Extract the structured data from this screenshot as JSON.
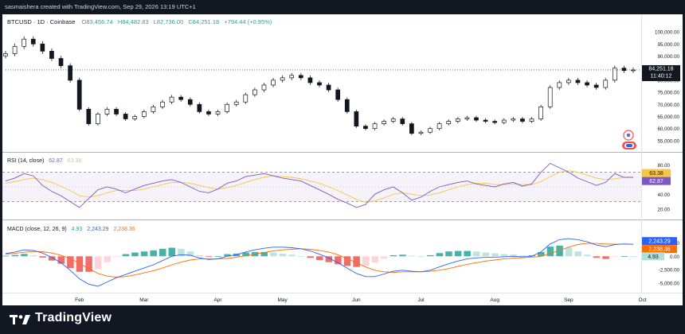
{
  "header": {
    "attribution": "sasmaishera created with TradingView.com, Sep 29, 2026 13:19 UTC+1"
  },
  "legend": {
    "symbol": "BTCUSD · 1D · Coinbase",
    "open": "O83,456.74",
    "high": "H84,482.83",
    "low": "L82,736.00",
    "close": "C84,251.18",
    "change": "+794.44 (+0.95%)"
  },
  "price_pane": {
    "axis_labels": [
      "100,000.00",
      "95,000.00",
      "90,000.00",
      "85,000.00",
      "80,000.00",
      "75,000.00",
      "70,000.00",
      "65,000.00",
      "60,000.00",
      "55,000.00"
    ],
    "axis_values": [
      100000,
      95000,
      90000,
      85000,
      80000,
      75000,
      70000,
      65000,
      60000,
      55000
    ],
    "last_price_label": "84,251.18",
    "countdown_label": "11:40:12"
  },
  "rsi_pane": {
    "legend_title": "RSI (14, close)",
    "legend_rsi": "62.87",
    "legend_ma": "63.38",
    "axis_labels": [
      "80.00",
      "60.00",
      "40.00",
      "20.00"
    ],
    "axis_values": [
      80,
      60,
      40,
      20
    ],
    "upper_band": 70,
    "middle_band": 50,
    "lower_band": 30,
    "ma_badge": "63.38",
    "rsi_badge": "62.87"
  },
  "macd_pane": {
    "legend_title": "MACD (close, 12, 26, 9)",
    "legend_hist": "4.93",
    "legend_macd": "2,243.29",
    "legend_signal": "2,238.36",
    "axis_labels": [
      "2,500.00",
      "0.00",
      "-2,500.00",
      "-5,000.00"
    ],
    "axis_values": [
      2500,
      0,
      -2500,
      -5000
    ],
    "macd_badge": "2,243.29",
    "signal_badge": "2,238.36",
    "hist_badge": "4.93"
  },
  "time_axis": {
    "labels": [
      "Feb",
      "Mar",
      "Apr",
      "May",
      "Jun",
      "Jul",
      "Aug",
      "Sep",
      "Oct"
    ]
  },
  "colors": {
    "up": "#26a69a",
    "down": "#ef5350",
    "candle": "#131722",
    "rsi_line": "#7e57c2",
    "rsi_ma": "#f7c544",
    "macd_line": "#2962ff",
    "signal_line": "#ff6d00"
  },
  "footer": {
    "brand": "TradingView"
  },
  "chart_data": {
    "type": "line",
    "x": [
      "Jan 1",
      "Jan 5",
      "Jan 9",
      "Jan 13",
      "Jan 17",
      "Jan 21",
      "Jan 25",
      "Jan 29",
      "Feb 2",
      "Feb 6",
      "Feb 10",
      "Feb 14",
      "Feb 18",
      "Feb 22",
      "Feb 26",
      "Mar 2",
      "Mar 6",
      "Mar 10",
      "Mar 14",
      "Mar 18",
      "Mar 22",
      "Mar 26",
      "Mar 30",
      "Apr 3",
      "Apr 7",
      "Apr 11",
      "Apr 15",
      "Apr 19",
      "Apr 23",
      "Apr 27",
      "May 1",
      "May 5",
      "May 9",
      "May 13",
      "May 17",
      "May 21",
      "May 25",
      "May 29",
      "Jun 2",
      "Jun 6",
      "Jun 10",
      "Jun 14",
      "Jun 18",
      "Jun 22",
      "Jun 26",
      "Jun 30",
      "Jul 4",
      "Jul 8",
      "Jul 12",
      "Jul 16",
      "Jul 20",
      "Jul 24",
      "Jul 28",
      "Aug 1",
      "Aug 5",
      "Aug 9",
      "Aug 13",
      "Aug 17",
      "Aug 21",
      "Aug 25",
      "Aug 29",
      "Sep 2",
      "Sep 6",
      "Sep 10",
      "Sep 14",
      "Sep 18",
      "Sep 22",
      "Sep 26",
      "Sep 29"
    ],
    "series": [
      {
        "name": "BTCUSD",
        "values": [
          91000,
          94000,
          97000,
          95000,
          92000,
          89000,
          86000,
          80000,
          68000,
          62000,
          66000,
          68000,
          66000,
          64000,
          65000,
          67000,
          69000,
          71000,
          73000,
          72000,
          70000,
          67000,
          66000,
          67000,
          70000,
          71000,
          74000,
          76000,
          78000,
          80000,
          81000,
          82000,
          81000,
          79000,
          78000,
          76000,
          72000,
          67000,
          61000,
          60000,
          62000,
          63000,
          64000,
          62000,
          58000,
          58500,
          60000,
          62000,
          63000,
          64000,
          64500,
          63500,
          63000,
          62500,
          63500,
          64000,
          63000,
          64000,
          69000,
          77000,
          79000,
          80000,
          79000,
          78000,
          77000,
          80000,
          85000,
          84000,
          84251
        ]
      },
      {
        "name": "RSI",
        "values": [
          58,
          62,
          68,
          65,
          52,
          44,
          38,
          30,
          22,
          34,
          46,
          50,
          47,
          42,
          47,
          52,
          55,
          58,
          60,
          56,
          50,
          44,
          42,
          47,
          55,
          58,
          64,
          66,
          68,
          65,
          62,
          60,
          58,
          52,
          46,
          40,
          33,
          28,
          22,
          26,
          40,
          46,
          50,
          42,
          32,
          36,
          44,
          50,
          53,
          56,
          58,
          54,
          52,
          50,
          54,
          56,
          51,
          54,
          70,
          82,
          76,
          70,
          62,
          57,
          52,
          56,
          68,
          63,
          62.87
        ]
      },
      {
        "name": "RSI MA",
        "values": [
          55,
          57,
          60,
          62,
          60,
          56,
          51,
          45,
          38,
          36,
          38,
          42,
          45,
          45,
          45,
          47,
          50,
          53,
          56,
          56,
          55,
          52,
          49,
          47,
          49,
          52,
          56,
          60,
          63,
          65,
          64,
          63,
          61,
          58,
          55,
          50,
          45,
          39,
          33,
          29,
          31,
          35,
          40,
          42,
          40,
          38,
          39,
          42,
          46,
          50,
          53,
          55,
          55,
          53,
          53,
          54,
          53,
          53,
          57,
          64,
          70,
          72,
          70,
          66,
          62,
          60,
          61,
          63,
          63.38
        ]
      },
      {
        "name": "MACD",
        "values": [
          500,
          800,
          1200,
          1100,
          600,
          -200,
          -1200,
          -2600,
          -4200,
          -5200,
          -5600,
          -4800,
          -4000,
          -3400,
          -2800,
          -2200,
          -1600,
          -800,
          0,
          300,
          200,
          -300,
          -600,
          -500,
          0,
          300,
          800,
          1200,
          1500,
          1700,
          1700,
          1600,
          1400,
          1000,
          400,
          -300,
          -1200,
          -2200,
          -3200,
          -3800,
          -3800,
          -3300,
          -2800,
          -2600,
          -2800,
          -2900,
          -2600,
          -2000,
          -1400,
          -900,
          -500,
          -300,
          -200,
          -150,
          -100,
          0,
          -100,
          0,
          800,
          2300,
          3100,
          3300,
          3100,
          2700,
          2100,
          1800,
          2200,
          2300,
          2243.29
        ]
      },
      {
        "name": "Signal",
        "values": [
          400,
          550,
          750,
          900,
          850,
          600,
          200,
          -400,
          -1300,
          -2300,
          -3200,
          -3700,
          -3900,
          -3800,
          -3500,
          -3100,
          -2700,
          -2200,
          -1600,
          -1100,
          -700,
          -500,
          -500,
          -500,
          -400,
          -200,
          100,
          400,
          700,
          1000,
          1200,
          1300,
          1400,
          1300,
          1100,
          800,
          300,
          -400,
          -1200,
          -2000,
          -2600,
          -2900,
          -3000,
          -2900,
          -2900,
          -2900,
          -2800,
          -2600,
          -2300,
          -1900,
          -1500,
          -1200,
          -900,
          -700,
          -500,
          -350,
          -250,
          -200,
          0,
          500,
          1100,
          1700,
          2200,
          2400,
          2400,
          2300,
          2250,
          2250,
          2238.36
        ]
      }
    ],
    "histogram_values": [
      100,
      250,
      450,
      200,
      -250,
      -800,
      -1400,
      -2200,
      -2900,
      -2900,
      -2400,
      -1100,
      -100,
      400,
      700,
      900,
      1100,
      1400,
      1600,
      1400,
      900,
      200,
      -100,
      0,
      400,
      500,
      700,
      800,
      800,
      700,
      500,
      300,
      0,
      -300,
      -700,
      -1100,
      -1500,
      -1800,
      -2000,
      -1800,
      -1200,
      -400,
      200,
      300,
      100,
      0,
      200,
      600,
      900,
      1000,
      1000,
      900,
      700,
      550,
      400,
      350,
      150,
      200,
      800,
      1800,
      2000,
      1600,
      900,
      300,
      -300,
      -500,
      -50,
      50,
      4.93
    ],
    "ylabel": "",
    "ylim": [
      55000,
      100000
    ]
  }
}
